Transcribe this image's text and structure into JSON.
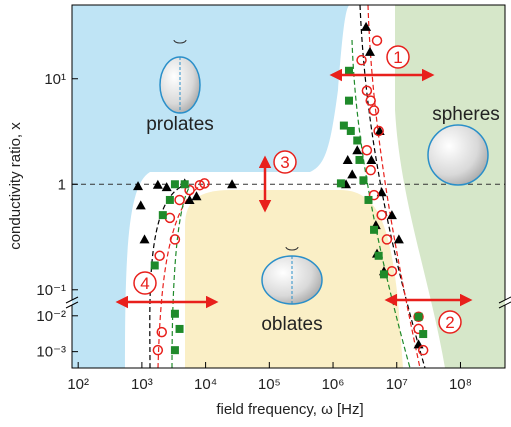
{
  "chart_data": {
    "type": "scatter",
    "xlabel": "field frequency, ω [Hz]",
    "ylabel": "conductivity ratio, x",
    "xscale": "log",
    "yscale": "log",
    "xlim": [
      80,
      500000000
    ],
    "xticks": [
      {
        "value": 100,
        "label": "10²"
      },
      {
        "value": 1000,
        "label": "10³"
      },
      {
        "value": 10000,
        "label": "10⁴"
      },
      {
        "value": 100000,
        "label": "10⁵"
      },
      {
        "value": 1000000,
        "label": "10⁶"
      },
      {
        "value": 10000000,
        "label": "10⁷"
      },
      {
        "value": 100000000,
        "label": "10⁸"
      }
    ],
    "y_segments": [
      {
        "ylim": [
          0.08,
          50
        ],
        "yticks": [
          {
            "value": 10,
            "label": "10¹"
          },
          1,
          {
            "value": 0.1,
            "label": "10⁻¹"
          }
        ]
      },
      {
        "ylim": [
          0.00035,
          0.02
        ],
        "yticks": [
          {
            "value": 0.01,
            "label": "10⁻²"
          },
          {
            "value": 0.001,
            "label": "10⁻³"
          }
        ]
      }
    ],
    "hline": 1,
    "region_labels": [
      "prolates",
      "spheres",
      "oblates"
    ],
    "markers": [
      "1",
      "2",
      "3",
      "4"
    ],
    "series": [
      {
        "marker": "triangle",
        "color": "#000000",
        "x": [
          870,
          960,
          1100,
          1780,
          2450,
          4700,
          5600,
          7200,
          26000,
          1600000,
          1700000,
          2000000,
          2400000,
          3300000,
          3800000,
          4000000,
          4700000,
          4900000,
          5400000,
          5800000,
          6300000,
          8400000,
          10800000,
          22000000
        ],
        "values": [
          0.96,
          0.63,
          0.3,
          0.99,
          0.94,
          1.02,
          0.71,
          0.77,
          1.0,
          1.0,
          1.7,
          1.24,
          2.1,
          31,
          18,
          1.7,
          0.41,
          0.22,
          3.2,
          0.84,
          0.15,
          0.51,
          0.3,
          0.0016
        ]
      },
      {
        "marker": "circle",
        "color": "#e8201c",
        "x": [
          1900,
          2750,
          3300,
          3900,
          5600,
          8100,
          9600,
          1780,
          2050,
          2800000,
          3400000,
          3900000,
          4400000,
          5200000,
          3400000,
          3900000,
          4400000,
          5800000,
          7000000,
          8400000,
          4900000,
          22000000,
          22000000,
          26000000
        ],
        "values": [
          0.21,
          0.48,
          0.3,
          0.71,
          0.88,
          0.98,
          1.02,
          0.0011,
          0.0035,
          15,
          7.7,
          6.2,
          5.0,
          3.2,
          2.1,
          1.36,
          0.79,
          0.51,
          0.3,
          0.15,
          23,
          0.0094,
          0.0043,
          0.0011
        ]
      },
      {
        "marker": "square",
        "color": "#1f8a2a",
        "x": [
          1590,
          2130,
          2750,
          3300,
          4700,
          3300,
          3900,
          3300,
          1480000,
          1780000,
          1900000,
          2400000,
          2600000,
          3000000,
          3600000,
          4400000,
          5200000,
          6300000,
          1780000,
          1330000,
          22000000,
          26000000
        ],
        "values": [
          0.17,
          0.51,
          0.71,
          1.0,
          1.0,
          0.0011,
          0.0043,
          0.0114,
          3.6,
          6.2,
          3.2,
          2.6,
          1.7,
          1.09,
          0.71,
          0.37,
          0.21,
          0.14,
          11.9,
          1.02,
          0.0094,
          0.0031
        ]
      }
    ]
  }
}
